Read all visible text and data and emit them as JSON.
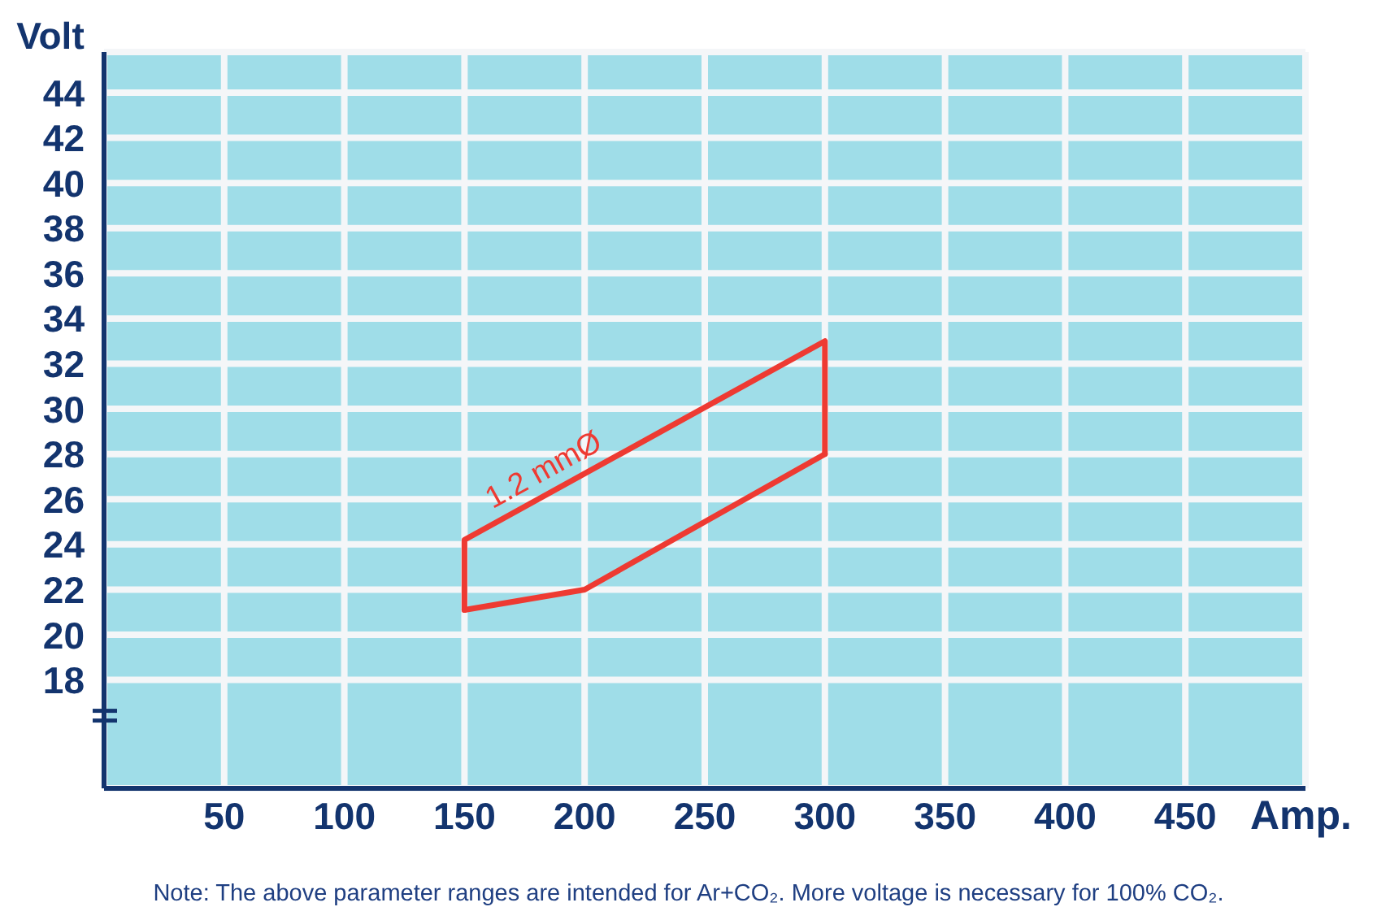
{
  "chart_data": {
    "type": "line",
    "xlabel": "Amp.",
    "ylabel": "Volt",
    "xlim": [
      0,
      500
    ],
    "xticks": [
      50,
      100,
      150,
      200,
      250,
      300,
      350,
      400,
      450
    ],
    "ylim": [
      13.2,
      45.8
    ],
    "yticks": [
      18,
      20,
      22,
      24,
      26,
      28,
      30,
      32,
      34,
      36,
      38,
      40,
      42,
      44
    ],
    "grid": true,
    "marker": "none",
    "line_style": "solid",
    "series": [
      {
        "name": "1.2 mmØ",
        "color": "#ee3a32",
        "x": [
          150,
          150,
          300,
          300
        ],
        "values": [
          21.1,
          24.2,
          33,
          28
        ]
      },
      {
        "color": "#ee3a32",
        "x": [
          150,
          200,
          300
        ],
        "values": [
          21.1,
          22,
          28
        ]
      }
    ],
    "annotations": [
      "Note: The above parameter ranges are intended for Ar+CO₂. More voltage is necessary for 100% CO₂."
    ]
  }
}
